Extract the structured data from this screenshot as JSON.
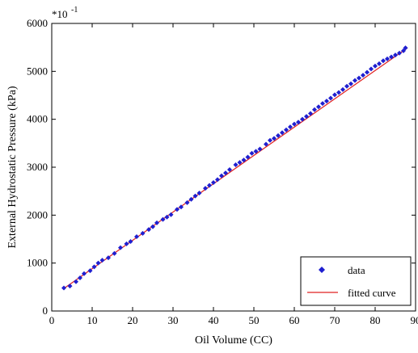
{
  "chart_data": {
    "type": "scatter",
    "title": "",
    "xlabel": "Oil Volume (CC)",
    "ylabel": "External Hydrostatic Pressure (kPa)",
    "y_multiplier_label": "*10",
    "y_multiplier_exponent": "-1",
    "xlim": [
      0,
      90
    ],
    "ylim": [
      0,
      6000
    ],
    "xticks": [
      0,
      10,
      20,
      30,
      40,
      50,
      60,
      70,
      80,
      90
    ],
    "yticks": [
      0,
      1000,
      2000,
      3000,
      4000,
      5000,
      6000
    ],
    "grid": false,
    "legend_position": "bottom-right",
    "colors": {
      "data": "#1f1fd0",
      "fit": "#e02020"
    },
    "series": [
      {
        "name": "data",
        "marker": "diamond",
        "x": [
          3,
          4.5,
          6,
          7,
          8,
          9.5,
          10.5,
          11.5,
          12.5,
          14,
          15.5,
          17,
          18.5,
          19.5,
          21,
          22.5,
          24,
          25,
          26,
          27.5,
          28.5,
          29.5,
          31,
          32,
          33.5,
          34.5,
          35.5,
          36.5,
          38,
          39,
          40,
          41,
          42,
          43,
          44,
          45.5,
          46.5,
          47.5,
          48.5,
          49.5,
          50.5,
          51.5,
          53,
          54,
          55,
          56,
          57,
          58,
          59,
          60,
          61,
          62,
          63,
          64,
          65,
          66,
          67,
          68,
          69,
          70,
          71,
          72,
          73,
          74,
          75,
          76,
          77,
          78,
          79,
          80,
          81,
          82,
          83,
          84,
          85,
          86,
          87,
          87.5
        ],
        "y": [
          480,
          520,
          610,
          690,
          780,
          840,
          920,
          1000,
          1060,
          1110,
          1200,
          1320,
          1400,
          1450,
          1550,
          1620,
          1700,
          1760,
          1840,
          1910,
          1960,
          2010,
          2120,
          2170,
          2260,
          2330,
          2400,
          2460,
          2560,
          2620,
          2680,
          2740,
          2820,
          2880,
          2950,
          3050,
          3100,
          3150,
          3210,
          3290,
          3330,
          3380,
          3480,
          3560,
          3600,
          3660,
          3720,
          3780,
          3840,
          3900,
          3940,
          4000,
          4060,
          4120,
          4200,
          4260,
          4330,
          4380,
          4440,
          4510,
          4560,
          4620,
          4690,
          4740,
          4810,
          4860,
          4920,
          4980,
          5050,
          5110,
          5160,
          5220,
          5260,
          5300,
          5340,
          5380,
          5430,
          5490
        ]
      },
      {
        "name": "fitted curve",
        "line": true,
        "x": [
          3,
          88
        ],
        "y": [
          470,
          5490
        ]
      }
    ]
  }
}
